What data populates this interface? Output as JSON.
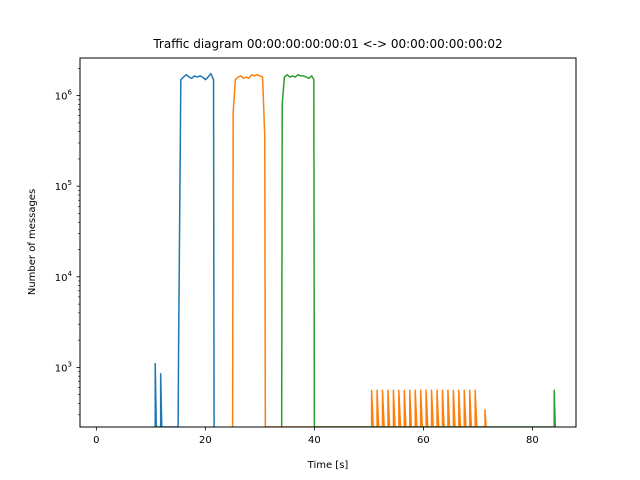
{
  "chart_data": {
    "type": "line",
    "title": "Traffic diagram 00:00:00:00:00:01 <-> 00:00:00:00:00:02",
    "xlabel": "Time [s]",
    "ylabel": "Number of messages",
    "xlim": [
      -3,
      88
    ],
    "ylim": [
      220,
      2600000
    ],
    "yscale": "log",
    "xticks": [
      0,
      20,
      40,
      60,
      80
    ],
    "yticks": [
      1000,
      10000,
      100000,
      1000000
    ],
    "ytick_labels": [
      {
        "base": "10",
        "exp": "3"
      },
      {
        "base": "10",
        "exp": "4"
      },
      {
        "base": "10",
        "exp": "5"
      },
      {
        "base": "10",
        "exp": "6"
      }
    ],
    "grid": false,
    "legend": "none",
    "series": [
      {
        "color": "#1f77b4",
        "points": [
          [
            10.8,
            220
          ],
          [
            10.8,
            1100
          ],
          [
            11.0,
            220
          ],
          [
            11.8,
            220
          ],
          [
            11.8,
            850
          ],
          [
            12.0,
            220
          ],
          [
            15.0,
            220
          ],
          [
            15.1,
            2000
          ],
          [
            15.5,
            1500000
          ],
          [
            16.0,
            1600000
          ],
          [
            16.5,
            1700000
          ],
          [
            17.0,
            1600000
          ],
          [
            17.5,
            1550000
          ],
          [
            18.0,
            1650000
          ],
          [
            18.5,
            1600000
          ],
          [
            19.0,
            1650000
          ],
          [
            19.5,
            1600000
          ],
          [
            20.0,
            1500000
          ],
          [
            20.5,
            1600000
          ],
          [
            21.0,
            1750000
          ],
          [
            21.5,
            1500000
          ],
          [
            21.6,
            220
          ]
        ]
      },
      {
        "color": "#ff7f0e",
        "points": [
          [
            25.0,
            220
          ],
          [
            25.1,
            650000
          ],
          [
            25.5,
            1500000
          ],
          [
            26.0,
            1600000
          ],
          [
            26.5,
            1650000
          ],
          [
            27.0,
            1550000
          ],
          [
            27.5,
            1600000
          ],
          [
            28.0,
            1550000
          ],
          [
            28.5,
            1700000
          ],
          [
            29.0,
            1650000
          ],
          [
            29.5,
            1700000
          ],
          [
            30.0,
            1650000
          ],
          [
            30.5,
            1600000
          ],
          [
            30.9,
            350000
          ],
          [
            31.0,
            220
          ],
          [
            50.5,
            220
          ],
          [
            50.5,
            560
          ],
          [
            50.8,
            220
          ],
          [
            51.5,
            220
          ],
          [
            51.5,
            560
          ],
          [
            51.8,
            220
          ],
          [
            52.5,
            220
          ],
          [
            52.5,
            560
          ],
          [
            52.8,
            220
          ],
          [
            53.5,
            220
          ],
          [
            53.5,
            560
          ],
          [
            53.8,
            220
          ],
          [
            54.5,
            220
          ],
          [
            54.5,
            560
          ],
          [
            54.8,
            220
          ],
          [
            55.5,
            220
          ],
          [
            55.5,
            560
          ],
          [
            55.8,
            220
          ],
          [
            56.5,
            220
          ],
          [
            56.5,
            560
          ],
          [
            56.8,
            220
          ],
          [
            57.5,
            220
          ],
          [
            57.5,
            560
          ],
          [
            57.8,
            220
          ],
          [
            58.5,
            220
          ],
          [
            58.5,
            560
          ],
          [
            58.8,
            220
          ],
          [
            59.5,
            220
          ],
          [
            59.5,
            560
          ],
          [
            59.8,
            220
          ],
          [
            60.5,
            220
          ],
          [
            60.5,
            560
          ],
          [
            60.8,
            220
          ],
          [
            61.5,
            220
          ],
          [
            61.5,
            560
          ],
          [
            61.8,
            220
          ],
          [
            62.5,
            220
          ],
          [
            62.5,
            560
          ],
          [
            62.8,
            220
          ],
          [
            63.5,
            220
          ],
          [
            63.5,
            560
          ],
          [
            63.8,
            220
          ],
          [
            64.5,
            220
          ],
          [
            64.5,
            560
          ],
          [
            64.8,
            220
          ],
          [
            65.5,
            220
          ],
          [
            65.5,
            560
          ],
          [
            65.8,
            220
          ],
          [
            66.5,
            220
          ],
          [
            66.5,
            560
          ],
          [
            66.8,
            220
          ],
          [
            67.5,
            220
          ],
          [
            67.5,
            560
          ],
          [
            67.8,
            220
          ],
          [
            68.5,
            220
          ],
          [
            68.5,
            560
          ],
          [
            68.8,
            220
          ],
          [
            69.5,
            220
          ],
          [
            69.5,
            560
          ],
          [
            69.8,
            220
          ],
          [
            71.3,
            220
          ],
          [
            71.3,
            340
          ],
          [
            71.5,
            220
          ]
        ]
      },
      {
        "color": "#2ca02c",
        "points": [
          [
            34.0,
            220
          ],
          [
            34.1,
            800000
          ],
          [
            34.5,
            1600000
          ],
          [
            35.0,
            1700000
          ],
          [
            35.5,
            1600000
          ],
          [
            36.0,
            1650000
          ],
          [
            36.5,
            1600000
          ],
          [
            37.0,
            1700000
          ],
          [
            37.5,
            1650000
          ],
          [
            38.0,
            1650000
          ],
          [
            38.5,
            1600000
          ],
          [
            39.0,
            1550000
          ],
          [
            39.5,
            1650000
          ],
          [
            39.9,
            1500000
          ],
          [
            40.0,
            220
          ],
          [
            84.0,
            220
          ],
          [
            84.0,
            560
          ],
          [
            84.2,
            220
          ]
        ]
      }
    ]
  }
}
